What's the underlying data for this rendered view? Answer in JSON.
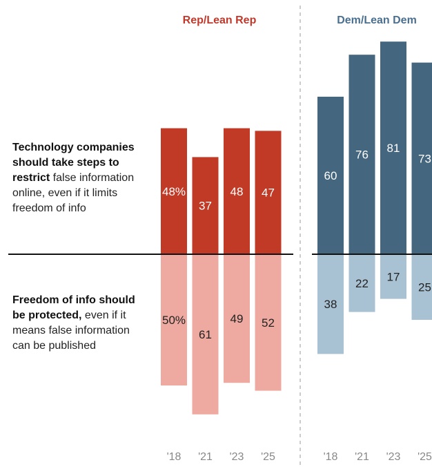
{
  "row_labels": {
    "top_bold": "Technology companies should take steps to restrict",
    "top_rest": "false information online, even if it limits freedom of info",
    "bottom_bold": "Freedom of info should be protected,",
    "bottom_rest": "even if it means false information can be published"
  },
  "colors": {
    "rep_title": "#c0392b",
    "dem_title": "#4a6f8f",
    "rep_top": "#c03a26",
    "rep_bottom": "#eeaaa0",
    "dem_top": "#44667f",
    "dem_bottom": "#a9c2d3",
    "tick": "#888888",
    "divider": "#bbbbbb"
  },
  "chart_data": {
    "type": "bar",
    "categories": [
      "'18",
      "'21",
      "'23",
      "'25"
    ],
    "groups": [
      {
        "name": "Rep/Lean Rep",
        "top_values": [
          48,
          37,
          48,
          47
        ],
        "top_labels": [
          "48%",
          "37",
          "48",
          "47"
        ],
        "bottom_values": [
          50,
          61,
          49,
          52
        ],
        "bottom_labels": [
          "50%",
          "61",
          "49",
          "52"
        ]
      },
      {
        "name": "Dem/Lean Dem",
        "top_values": [
          60,
          76,
          81,
          73
        ],
        "top_labels": [
          "60",
          "76",
          "81",
          "73"
        ],
        "bottom_values": [
          38,
          22,
          17,
          25
        ],
        "bottom_labels": [
          "38",
          "22",
          "17",
          "25"
        ]
      }
    ]
  }
}
